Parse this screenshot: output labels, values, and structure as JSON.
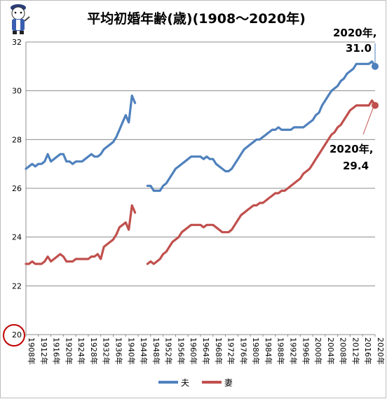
{
  "chart_data": {
    "type": "line",
    "title": "平均初婚年齢(歳)(1908〜2020年)",
    "ylim": [
      20,
      32
    ],
    "yticks": [
      20,
      22,
      24,
      26,
      28,
      30,
      32
    ],
    "grid": true,
    "legend_position": "bottom",
    "x_labels": [
      "1908年",
      "1912年",
      "1916年",
      "1920年",
      "1924年",
      "1928年",
      "1932年",
      "1936年",
      "1940年",
      "1944年",
      "1948年",
      "1952年",
      "1956年",
      "1960年",
      "1964年",
      "1968年",
      "1972年",
      "1976年",
      "1980年",
      "1984年",
      "1988年",
      "1992年",
      "1996年",
      "2000年",
      "2004年",
      "2008年",
      "2012年",
      "2016年",
      "2020年"
    ],
    "x_range": [
      1908,
      2020
    ],
    "series": [
      {
        "name": "夫",
        "color": "#4f81bd",
        "segments": [
          [
            [
              1908,
              26.8
            ],
            [
              1909,
              26.9
            ],
            [
              1910,
              27.0
            ],
            [
              1911,
              26.9
            ],
            [
              1912,
              27.0
            ],
            [
              1913,
              27.0
            ],
            [
              1914,
              27.1
            ],
            [
              1915,
              27.4
            ],
            [
              1916,
              27.1
            ],
            [
              1917,
              27.2
            ],
            [
              1918,
              27.3
            ],
            [
              1919,
              27.4
            ],
            [
              1920,
              27.4
            ],
            [
              1921,
              27.1
            ],
            [
              1922,
              27.1
            ],
            [
              1923,
              27.0
            ],
            [
              1924,
              27.1
            ],
            [
              1925,
              27.1
            ],
            [
              1926,
              27.1
            ],
            [
              1927,
              27.2
            ],
            [
              1928,
              27.3
            ],
            [
              1929,
              27.4
            ],
            [
              1930,
              27.3
            ],
            [
              1931,
              27.3
            ],
            [
              1932,
              27.4
            ],
            [
              1933,
              27.6
            ],
            [
              1934,
              27.7
            ],
            [
              1935,
              27.8
            ],
            [
              1936,
              27.9
            ],
            [
              1937,
              28.1
            ],
            [
              1938,
              28.4
            ],
            [
              1939,
              28.7
            ],
            [
              1940,
              29.0
            ],
            [
              1941,
              28.7
            ],
            [
              1942,
              29.8
            ],
            [
              1943,
              29.5
            ]
          ],
          [
            [
              1947,
              26.1
            ],
            [
              1948,
              26.1
            ],
            [
              1949,
              25.9
            ],
            [
              1950,
              25.9
            ],
            [
              1951,
              25.9
            ],
            [
              1952,
              26.1
            ],
            [
              1953,
              26.2
            ],
            [
              1954,
              26.4
            ],
            [
              1955,
              26.6
            ],
            [
              1956,
              26.8
            ],
            [
              1957,
              26.9
            ],
            [
              1958,
              27.0
            ],
            [
              1959,
              27.1
            ],
            [
              1960,
              27.2
            ],
            [
              1961,
              27.3
            ],
            [
              1962,
              27.3
            ],
            [
              1963,
              27.3
            ],
            [
              1964,
              27.3
            ],
            [
              1965,
              27.2
            ],
            [
              1966,
              27.3
            ],
            [
              1967,
              27.2
            ],
            [
              1968,
              27.2
            ],
            [
              1969,
              27.0
            ],
            [
              1970,
              26.9
            ],
            [
              1971,
              26.8
            ],
            [
              1972,
              26.7
            ],
            [
              1973,
              26.7
            ],
            [
              1974,
              26.8
            ],
            [
              1975,
              27.0
            ],
            [
              1976,
              27.2
            ],
            [
              1977,
              27.4
            ],
            [
              1978,
              27.6
            ],
            [
              1979,
              27.7
            ],
            [
              1980,
              27.8
            ],
            [
              1981,
              27.9
            ],
            [
              1982,
              28.0
            ],
            [
              1983,
              28.0
            ],
            [
              1984,
              28.1
            ],
            [
              1985,
              28.2
            ],
            [
              1986,
              28.3
            ],
            [
              1987,
              28.4
            ],
            [
              1988,
              28.4
            ],
            [
              1989,
              28.5
            ],
            [
              1990,
              28.4
            ],
            [
              1991,
              28.4
            ],
            [
              1992,
              28.4
            ],
            [
              1993,
              28.4
            ],
            [
              1994,
              28.5
            ],
            [
              1995,
              28.5
            ],
            [
              1996,
              28.5
            ],
            [
              1997,
              28.5
            ],
            [
              1998,
              28.6
            ],
            [
              1999,
              28.7
            ],
            [
              2000,
              28.8
            ],
            [
              2001,
              29.0
            ],
            [
              2002,
              29.1
            ],
            [
              2003,
              29.4
            ],
            [
              2004,
              29.6
            ],
            [
              2005,
              29.8
            ],
            [
              2006,
              30.0
            ],
            [
              2007,
              30.1
            ],
            [
              2008,
              30.2
            ],
            [
              2009,
              30.4
            ],
            [
              2010,
              30.5
            ],
            [
              2011,
              30.7
            ],
            [
              2012,
              30.8
            ],
            [
              2013,
              30.9
            ],
            [
              2014,
              31.1
            ],
            [
              2015,
              31.1
            ],
            [
              2016,
              31.1
            ],
            [
              2017,
              31.1
            ],
            [
              2018,
              31.1
            ],
            [
              2019,
              31.2
            ],
            [
              2020,
              31.0
            ]
          ]
        ]
      },
      {
        "name": "妻",
        "color": "#c0504d",
        "segments": [
          [
            [
              1908,
              22.9
            ],
            [
              1909,
              22.9
            ],
            [
              1910,
              23.0
            ],
            [
              1911,
              22.9
            ],
            [
              1912,
              22.9
            ],
            [
              1913,
              22.9
            ],
            [
              1914,
              23.0
            ],
            [
              1915,
              23.2
            ],
            [
              1916,
              23.0
            ],
            [
              1917,
              23.1
            ],
            [
              1918,
              23.2
            ],
            [
              1919,
              23.3
            ],
            [
              1920,
              23.2
            ],
            [
              1921,
              23.0
            ],
            [
              1922,
              23.0
            ],
            [
              1923,
              23.0
            ],
            [
              1924,
              23.1
            ],
            [
              1925,
              23.1
            ],
            [
              1926,
              23.1
            ],
            [
              1927,
              23.1
            ],
            [
              1928,
              23.1
            ],
            [
              1929,
              23.2
            ],
            [
              1930,
              23.2
            ],
            [
              1931,
              23.3
            ],
            [
              1932,
              23.1
            ],
            [
              1933,
              23.6
            ],
            [
              1934,
              23.7
            ],
            [
              1935,
              23.8
            ],
            [
              1936,
              23.9
            ],
            [
              1937,
              24.1
            ],
            [
              1938,
              24.4
            ],
            [
              1939,
              24.5
            ],
            [
              1940,
              24.6
            ],
            [
              1941,
              24.3
            ],
            [
              1942,
              25.3
            ],
            [
              1943,
              25.0
            ]
          ],
          [
            [
              1947,
              22.9
            ],
            [
              1948,
              23.0
            ],
            [
              1949,
              22.9
            ],
            [
              1950,
              23.0
            ],
            [
              1951,
              23.1
            ],
            [
              1952,
              23.3
            ],
            [
              1953,
              23.4
            ],
            [
              1954,
              23.6
            ],
            [
              1955,
              23.8
            ],
            [
              1956,
              23.9
            ],
            [
              1957,
              24.0
            ],
            [
              1958,
              24.2
            ],
            [
              1959,
              24.3
            ],
            [
              1960,
              24.4
            ],
            [
              1961,
              24.5
            ],
            [
              1962,
              24.5
            ],
            [
              1963,
              24.5
            ],
            [
              1964,
              24.5
            ],
            [
              1965,
              24.4
            ],
            [
              1966,
              24.5
            ],
            [
              1967,
              24.5
            ],
            [
              1968,
              24.5
            ],
            [
              1969,
              24.4
            ],
            [
              1970,
              24.3
            ],
            [
              1971,
              24.2
            ],
            [
              1972,
              24.2
            ],
            [
              1973,
              24.2
            ],
            [
              1974,
              24.3
            ],
            [
              1975,
              24.5
            ],
            [
              1976,
              24.7
            ],
            [
              1977,
              24.9
            ],
            [
              1978,
              25.0
            ],
            [
              1979,
              25.1
            ],
            [
              1980,
              25.2
            ],
            [
              1981,
              25.3
            ],
            [
              1982,
              25.3
            ],
            [
              1983,
              25.4
            ],
            [
              1984,
              25.4
            ],
            [
              1985,
              25.5
            ],
            [
              1986,
              25.6
            ],
            [
              1987,
              25.7
            ],
            [
              1988,
              25.8
            ],
            [
              1989,
              25.8
            ],
            [
              1990,
              25.9
            ],
            [
              1991,
              25.9
            ],
            [
              1992,
              26.0
            ],
            [
              1993,
              26.1
            ],
            [
              1994,
              26.2
            ],
            [
              1995,
              26.3
            ],
            [
              1996,
              26.4
            ],
            [
              1997,
              26.6
            ],
            [
              1998,
              26.7
            ],
            [
              1999,
              26.8
            ],
            [
              2000,
              27.0
            ],
            [
              2001,
              27.2
            ],
            [
              2002,
              27.4
            ],
            [
              2003,
              27.6
            ],
            [
              2004,
              27.8
            ],
            [
              2005,
              28.0
            ],
            [
              2006,
              28.2
            ],
            [
              2007,
              28.3
            ],
            [
              2008,
              28.5
            ],
            [
              2009,
              28.6
            ],
            [
              2010,
              28.8
            ],
            [
              2011,
              29.0
            ],
            [
              2012,
              29.2
            ],
            [
              2013,
              29.3
            ],
            [
              2014,
              29.4
            ],
            [
              2015,
              29.4
            ],
            [
              2016,
              29.4
            ],
            [
              2017,
              29.4
            ],
            [
              2018,
              29.4
            ],
            [
              2019,
              29.6
            ],
            [
              2020,
              29.4
            ]
          ]
        ]
      }
    ],
    "annotations": [
      {
        "text_line1": "2020年,",
        "text_line2": "31.0",
        "series": "夫"
      },
      {
        "text_line1": "2020年,",
        "text_line2": "29.4",
        "series": "妻"
      }
    ]
  }
}
